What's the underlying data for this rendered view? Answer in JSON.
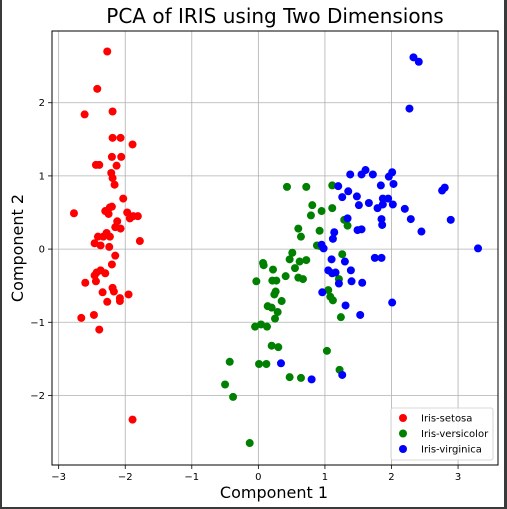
{
  "chart_data": {
    "type": "scatter",
    "title": "PCA of IRIS using Two Dimensions",
    "xlabel": "Component 1",
    "ylabel": "Component 2",
    "xlim": [
      -3.1,
      3.6
    ],
    "ylim": [
      -2.95,
      2.98
    ],
    "xticks": [
      -3,
      -2,
      -1,
      0,
      1,
      2,
      3
    ],
    "yticks": [
      -2,
      -1,
      0,
      1,
      2
    ],
    "grid": true,
    "legend_position": "bottom-right",
    "series": [
      {
        "name": "Iris-setosa",
        "color": "#ff0000",
        "points": [
          [
            -2.27,
            2.7
          ],
          [
            -2.42,
            2.19
          ],
          [
            -2.61,
            1.84
          ],
          [
            -2.19,
            1.88
          ],
          [
            -2.19,
            1.52
          ],
          [
            -2.07,
            1.52
          ],
          [
            -1.89,
            1.43
          ],
          [
            -2.2,
            1.26
          ],
          [
            -2.06,
            1.26
          ],
          [
            -2.39,
            1.15
          ],
          [
            -2.44,
            1.15
          ],
          [
            -2.13,
            1.14
          ],
          [
            -2.21,
            1.04
          ],
          [
            -2.19,
            0.97
          ],
          [
            -2.16,
            0.88
          ],
          [
            -2.03,
            0.69
          ],
          [
            -2.23,
            0.57
          ],
          [
            -2.3,
            0.52
          ],
          [
            -2.25,
            0.48
          ],
          [
            -2.2,
            0.58
          ],
          [
            -2.77,
            0.49
          ],
          [
            -1.97,
            0.5
          ],
          [
            -1.88,
            0.45
          ],
          [
            -1.81,
            0.45
          ],
          [
            -1.93,
            0.42
          ],
          [
            -2.12,
            0.38
          ],
          [
            -2.07,
            0.28
          ],
          [
            -2.15,
            0.3
          ],
          [
            -2.28,
            0.22
          ],
          [
            -2.33,
            0.17
          ],
          [
            -2.23,
            0.17
          ],
          [
            -2.41,
            0.17
          ],
          [
            -2.24,
            0.03
          ],
          [
            -2.46,
            0.08
          ],
          [
            -2.37,
            0.05
          ],
          [
            -1.78,
            0.11
          ],
          [
            -2.15,
            -0.09
          ],
          [
            -2.2,
            -0.21
          ],
          [
            -2.37,
            -0.29
          ],
          [
            -2.43,
            -0.32
          ],
          [
            -2.46,
            -0.36
          ],
          [
            -2.3,
            -0.33
          ],
          [
            -2.6,
            -0.46
          ],
          [
            -2.44,
            -0.44
          ],
          [
            -2.34,
            -0.59
          ],
          [
            -2.19,
            -0.53
          ],
          [
            -2.17,
            -0.58
          ],
          [
            -1.95,
            -0.62
          ],
          [
            -2.27,
            -0.72
          ],
          [
            -2.08,
            -0.67
          ],
          [
            -2.08,
            -0.71
          ],
          [
            -2.66,
            -0.94
          ],
          [
            -2.47,
            -0.9
          ],
          [
            -2.39,
            -1.1
          ],
          [
            -1.89,
            -2.33
          ]
        ]
      },
      {
        "name": "Iris-versicolor",
        "color": "#008000",
        "points": [
          [
            0.43,
            0.85
          ],
          [
            0.72,
            0.85
          ],
          [
            1.11,
            0.87
          ],
          [
            0.81,
            0.6
          ],
          [
            0.79,
            0.46
          ],
          [
            0.95,
            0.52
          ],
          [
            1.11,
            0.56
          ],
          [
            1.29,
            0.4
          ],
          [
            1.34,
            0.32
          ],
          [
            0.92,
            0.25
          ],
          [
            0.6,
            0.28
          ],
          [
            0.64,
            0.17
          ],
          [
            0.88,
            0.05
          ],
          [
            0.93,
            0.04
          ],
          [
            1.26,
            -0.07
          ],
          [
            0.51,
            -0.05
          ],
          [
            0.72,
            -0.15
          ],
          [
            0.62,
            -0.17
          ],
          [
            0.47,
            -0.14
          ],
          [
            0.07,
            -0.19
          ],
          [
            0.08,
            -0.22
          ],
          [
            0.22,
            -0.28
          ],
          [
            0.55,
            -0.26
          ],
          [
            0.6,
            -0.39
          ],
          [
            0.41,
            -0.37
          ],
          [
            0.21,
            -0.43
          ],
          [
            0.27,
            -0.43
          ],
          [
            0.67,
            -0.41
          ],
          [
            -0.03,
            -0.44
          ],
          [
            1.21,
            -0.41
          ],
          [
            1.05,
            -0.56
          ],
          [
            0.26,
            -0.58
          ],
          [
            0.24,
            -0.62
          ],
          [
            1.08,
            -0.65
          ],
          [
            1.12,
            -0.7
          ],
          [
            0.35,
            -0.71
          ],
          [
            0.14,
            -0.78
          ],
          [
            0.2,
            -0.8
          ],
          [
            0.29,
            -0.86
          ],
          [
            0.25,
            -0.95
          ],
          [
            1.24,
            -0.93
          ],
          [
            0.04,
            -1.03
          ],
          [
            -0.05,
            -1.06
          ],
          [
            0.13,
            -1.06
          ],
          [
            0.2,
            -1.32
          ],
          [
            0.3,
            -1.34
          ],
          [
            1.03,
            -1.39
          ],
          [
            0.47,
            -1.75
          ],
          [
            0.64,
            -1.76
          ],
          [
            1.22,
            -1.65
          ],
          [
            0.01,
            -1.57
          ],
          [
            0.12,
            -1.57
          ],
          [
            -0.43,
            -1.54
          ],
          [
            -0.5,
            -1.85
          ],
          [
            -0.38,
            -2.02
          ],
          [
            -0.13,
            -2.65
          ]
        ]
      },
      {
        "name": "Iris-virginica",
        "color": "#0000ff",
        "points": [
          [
            2.33,
            2.62
          ],
          [
            2.41,
            2.56
          ],
          [
            2.27,
            1.92
          ],
          [
            1.61,
            1.08
          ],
          [
            1.38,
            1.02
          ],
          [
            1.55,
            1.02
          ],
          [
            1.72,
            1.02
          ],
          [
            1.96,
            0.99
          ],
          [
            2.01,
            1.05
          ],
          [
            1.84,
            0.87
          ],
          [
            2.03,
            0.89
          ],
          [
            1.2,
            0.86
          ],
          [
            1.35,
            0.79
          ],
          [
            1.48,
            0.72
          ],
          [
            1.26,
            0.71
          ],
          [
            1.95,
            0.69
          ],
          [
            1.87,
            0.61
          ],
          [
            1.66,
            0.63
          ],
          [
            1.79,
            0.56
          ],
          [
            1.51,
            0.6
          ],
          [
            1.87,
            0.69
          ],
          [
            2.02,
            0.61
          ],
          [
            2.2,
            0.55
          ],
          [
            2.76,
            0.8
          ],
          [
            2.8,
            0.84
          ],
          [
            1.34,
            0.42
          ],
          [
            1.85,
            0.41
          ],
          [
            1.86,
            0.33
          ],
          [
            2.29,
            0.41
          ],
          [
            2.89,
            0.4
          ],
          [
            1.49,
            0.26
          ],
          [
            1.55,
            0.27
          ],
          [
            2.45,
            0.24
          ],
          [
            1.14,
            0.23
          ],
          [
            1.12,
            0.14
          ],
          [
            0.95,
            0.06
          ],
          [
            0.98,
            0.01
          ],
          [
            3.3,
            0.01
          ],
          [
            1.1,
            -0.14
          ],
          [
            1.3,
            -0.17
          ],
          [
            1.75,
            -0.12
          ],
          [
            1.85,
            -0.12
          ],
          [
            1.16,
            -0.32
          ],
          [
            1.05,
            -0.29
          ],
          [
            1.11,
            -0.33
          ],
          [
            1.39,
            -0.29
          ],
          [
            1.21,
            -0.47
          ],
          [
            1.4,
            -0.44
          ],
          [
            1.56,
            -0.46
          ],
          [
            0.96,
            -0.59
          ],
          [
            1.31,
            -0.77
          ],
          [
            2.01,
            -0.73
          ],
          [
            1.53,
            -0.9
          ],
          [
            0.34,
            -1.56
          ],
          [
            1.26,
            -1.72
          ],
          [
            0.8,
            -1.78
          ]
        ]
      }
    ]
  }
}
